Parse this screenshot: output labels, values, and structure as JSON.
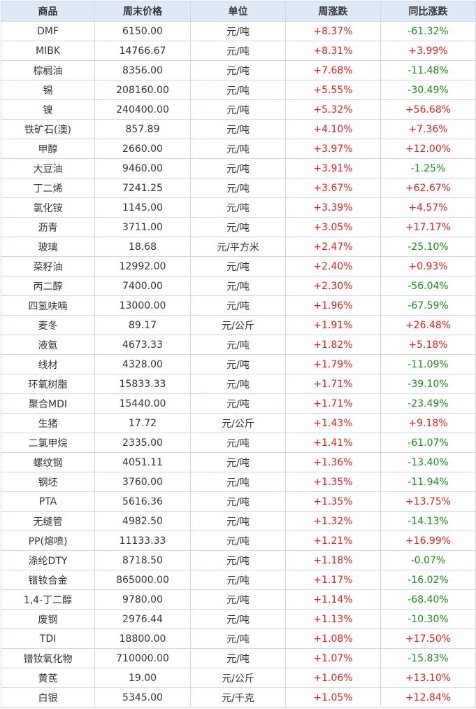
{
  "table": {
    "headers": [
      "商品",
      "周末价格",
      "单位",
      "周涨跌",
      "同比涨跌"
    ],
    "rows": [
      [
        "DMF",
        "6150.00",
        "元/吨",
        "+8.37%",
        "-61.32%"
      ],
      [
        "MIBK",
        "14766.67",
        "元/吨",
        "+8.31%",
        "+3.99%"
      ],
      [
        "棕榈油",
        "8356.00",
        "元/吨",
        "+7.68%",
        "-11.48%"
      ],
      [
        "锡",
        "208160.00",
        "元/吨",
        "+5.55%",
        "-30.49%"
      ],
      [
        "镍",
        "240400.00",
        "元/吨",
        "+5.32%",
        "+56.68%"
      ],
      [
        "铁矿石(澳)",
        "857.89",
        "元/吨",
        "+4.10%",
        "+7.36%"
      ],
      [
        "甲醇",
        "2660.00",
        "元/吨",
        "+3.97%",
        "+12.00%"
      ],
      [
        "大豆油",
        "9460.00",
        "元/吨",
        "+3.91%",
        "-1.25%"
      ],
      [
        "丁二烯",
        "7241.25",
        "元/吨",
        "+3.67%",
        "+62.67%"
      ],
      [
        "氯化铵",
        "1145.00",
        "元/吨",
        "+3.39%",
        "+4.57%"
      ],
      [
        "沥青",
        "3711.00",
        "元/吨",
        "+3.05%",
        "+17.17%"
      ],
      [
        "玻璃",
        "18.68",
        "元/平方米",
        "+2.47%",
        "-25.10%"
      ],
      [
        "菜籽油",
        "12992.00",
        "元/吨",
        "+2.40%",
        "+0.93%"
      ],
      [
        "丙二醇",
        "7400.00",
        "元/吨",
        "+2.30%",
        "-56.04%"
      ],
      [
        "四氢呋喃",
        "13000.00",
        "元/吨",
        "+1.96%",
        "-67.59%"
      ],
      [
        "麦冬",
        "89.17",
        "元/公斤",
        "+1.91%",
        "+26.48%"
      ],
      [
        "液氨",
        "4673.33",
        "元/吨",
        "+1.82%",
        "+5.18%"
      ],
      [
        "线材",
        "4328.00",
        "元/吨",
        "+1.79%",
        "-11.09%"
      ],
      [
        "环氧树脂",
        "15833.33",
        "元/吨",
        "+1.71%",
        "-39.10%"
      ],
      [
        "聚合MDI",
        "15440.00",
        "元/吨",
        "+1.71%",
        "-23.49%"
      ],
      [
        "生猪",
        "17.72",
        "元/公斤",
        "+1.43%",
        "+9.18%"
      ],
      [
        "二氯甲烷",
        "2335.00",
        "元/吨",
        "+1.41%",
        "-61.07%"
      ],
      [
        "螺纹钢",
        "4051.11",
        "元/吨",
        "+1.36%",
        "-13.40%"
      ],
      [
        "钢坯",
        "3760.00",
        "元/吨",
        "+1.35%",
        "-11.94%"
      ],
      [
        "PTA",
        "5616.36",
        "元/吨",
        "+1.35%",
        "+13.75%"
      ],
      [
        "无缝管",
        "4982.50",
        "元/吨",
        "+1.32%",
        "-14.13%"
      ],
      [
        "PP(熔喷)",
        "11133.33",
        "元/吨",
        "+1.21%",
        "+16.99%"
      ],
      [
        "涤纶DTY",
        "8718.50",
        "元/吨",
        "+1.18%",
        "-0.07%"
      ],
      [
        "镨钕合金",
        "865000.00",
        "元/吨",
        "+1.17%",
        "-16.02%"
      ],
      [
        "1,4-丁二醇",
        "9780.00",
        "元/吨",
        "+1.14%",
        "-68.40%"
      ],
      [
        "废钢",
        "2976.44",
        "元/吨",
        "+1.13%",
        "-10.30%"
      ],
      [
        "TDI",
        "18800.00",
        "元/吨",
        "+1.08%",
        "+17.50%"
      ],
      [
        "镨钕氧化物",
        "710000.00",
        "元/吨",
        "+1.07%",
        "-15.83%"
      ],
      [
        "黄芪",
        "19.00",
        "元/公斤",
        "+1.06%",
        "+13.10%"
      ],
      [
        "白银",
        "5345.00",
        "元/千克",
        "+1.05%",
        "+12.84%"
      ]
    ]
  },
  "colors": {
    "header_bg": "#dde9f7",
    "border": "#cfd8e6",
    "positive": "#e02020",
    "negative": "#1a8a1a",
    "text": "#333333"
  }
}
